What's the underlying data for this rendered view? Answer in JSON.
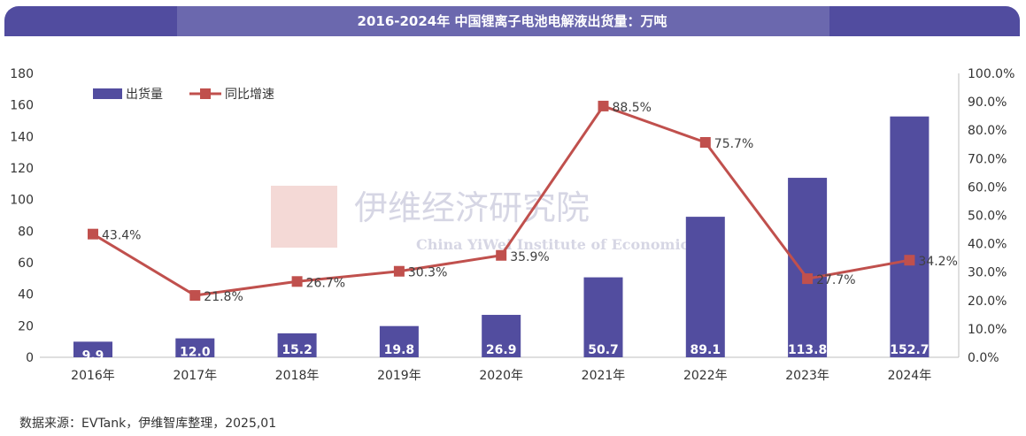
{
  "header": {
    "title": "2016-2024年 中国锂离子电池电解液出货量：万吨"
  },
  "footer": {
    "source": "数据来源：EVTank，伊维智库整理，2025,01"
  },
  "watermark": {
    "text_cn": "伊维经济研究院",
    "logo_cn": "伊维智库",
    "text_en": "China YiWei Institute of Economics"
  },
  "chart_data": {
    "type": "bar+line",
    "categories": [
      "2016年",
      "2017年",
      "2018年",
      "2019年",
      "2020年",
      "2021年",
      "2022年",
      "2023年",
      "2024年"
    ],
    "series": [
      {
        "name": "出货量",
        "type": "bar",
        "axis": "left",
        "values": [
          9.9,
          12.0,
          15.2,
          19.8,
          26.9,
          50.7,
          89.1,
          113.8,
          152.7
        ],
        "labels": [
          "9.9",
          "12.0",
          "15.2",
          "19.8",
          "26.9",
          "50.7",
          "89.1",
          "113.8",
          "152.7"
        ],
        "color": "#524d9f"
      },
      {
        "name": "同比增速",
        "type": "line",
        "axis": "right",
        "values": [
          43.4,
          21.8,
          26.7,
          30.3,
          35.9,
          88.5,
          75.7,
          27.7,
          34.2
        ],
        "labels": [
          "43.4%",
          "21.8%",
          "26.7%",
          "30.3%",
          "35.9%",
          "88.5%",
          "75.7%",
          "27.7%",
          "34.2%"
        ],
        "color": "#c0504d"
      }
    ],
    "left_axis": {
      "ylim": [
        0,
        180
      ],
      "ticks": [
        "0",
        "20",
        "40",
        "60",
        "80",
        "100",
        "120",
        "140",
        "160",
        "180"
      ]
    },
    "right_axis": {
      "ylim": [
        0,
        100
      ],
      "ticks": [
        "0.0%",
        "10.0%",
        "20.0%",
        "30.0%",
        "40.0%",
        "50.0%",
        "60.0%",
        "70.0%",
        "80.0%",
        "90.0%",
        "100.0%"
      ]
    },
    "legend": "top-left",
    "grid": false
  }
}
